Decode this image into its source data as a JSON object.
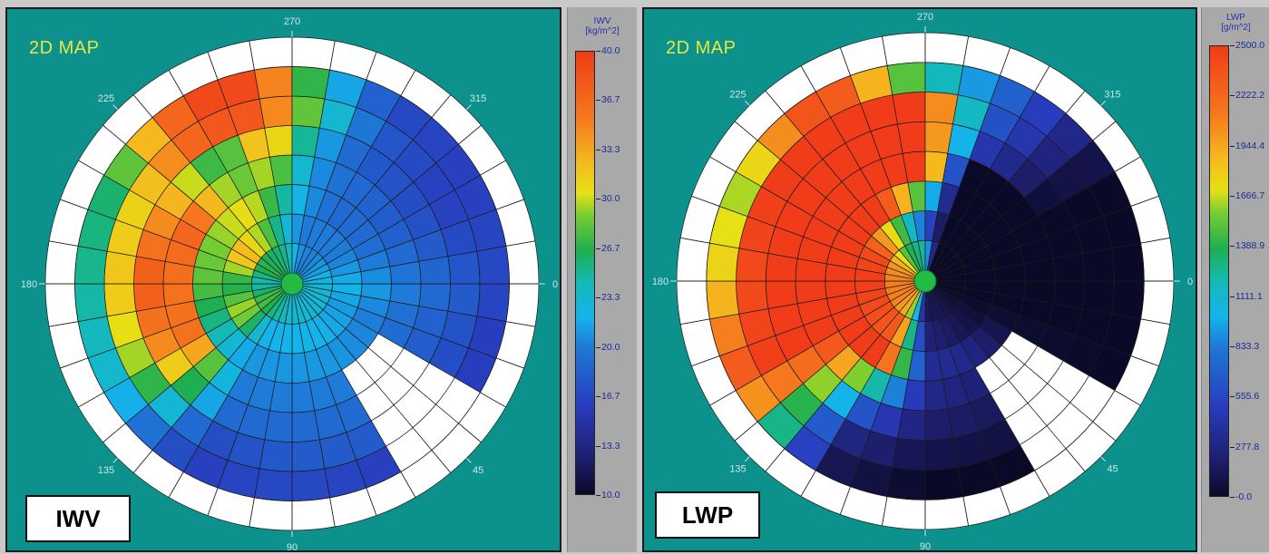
{
  "panels": [
    {
      "id": "iwv",
      "map_title": "2D MAP",
      "name": "IWV",
      "colorbar": {
        "unit_line1": "IWV",
        "unit_line2": "[kg/m^2]",
        "ticks": [
          "40.0",
          "36.7",
          "33.3",
          "30.0",
          "26.7",
          "23.3",
          "20.0",
          "16.7",
          "13.3",
          "10.0"
        ],
        "min": 10.0,
        "max": 40.0
      }
    },
    {
      "id": "lwp",
      "map_title": "2D MAP",
      "name": "LWP",
      "colorbar": {
        "unit_line1": "LWP",
        "unit_line2": "[g/m^2]",
        "ticks": [
          "2500.0",
          "2222.2",
          "1944.4",
          "1666.7",
          "1388.9",
          "1111.1",
          "833.3",
          "555.6",
          "277.8",
          "-0.0"
        ],
        "min": 0.0,
        "max": 2500.0
      }
    }
  ],
  "azimuth_labels": [
    "0",
    "45",
    "90",
    "135",
    "180",
    "225",
    "270",
    "315"
  ],
  "colors": {
    "panel_bg": "#0c918d",
    "title_yellow": "#e8e83a",
    "ring_white": "#ffffff",
    "grid_line": "#1a1a1a",
    "center_dot": "#22bb44"
  },
  "chart_data": [
    {
      "type": "heatmap",
      "projection": "polar",
      "title": "2D MAP",
      "variable": "IWV",
      "unit": "kg/m^2",
      "color_range": [
        10.0,
        40.0
      ],
      "sector_deg": 10,
      "elevation_rings": 7,
      "outer_ring_empty": true,
      "gap_azimuth_range": [
        30,
        60
      ],
      "values_by_azimuth": [
        {
          "az": 0,
          "rings": [
            23,
            22,
            21,
            20,
            19,
            18,
            17
          ]
        },
        {
          "az": 10,
          "rings": [
            23,
            22,
            21,
            20,
            19,
            18,
            16
          ]
        },
        {
          "az": 20,
          "rings": [
            23,
            21,
            20,
            19,
            18,
            17,
            16
          ]
        },
        {
          "az": 60,
          "rings": [
            23,
            22,
            21,
            20,
            19,
            18,
            16
          ]
        },
        {
          "az": 90,
          "rings": [
            23,
            22,
            21,
            20,
            19,
            18,
            17
          ]
        },
        {
          "az": 120,
          "rings": [
            25,
            22,
            21,
            20,
            19,
            17,
            16
          ]
        },
        {
          "az": 150,
          "rings": [
            28,
            30,
            25,
            36,
            34,
            29,
            23
          ]
        },
        {
          "az": 180,
          "rings": [
            24,
            26,
            28,
            36,
            38,
            32,
            25
          ]
        },
        {
          "az": 210,
          "rings": [
            27,
            33,
            29,
            37,
            34,
            31,
            26
          ]
        },
        {
          "az": 240,
          "rings": [
            26,
            29,
            31,
            28,
            26,
            38,
            39
          ]
        },
        {
          "az": 260,
          "rings": [
            25,
            24,
            26,
            30,
            34,
            38,
            39
          ]
        },
        {
          "az": 280,
          "rings": [
            21,
            20,
            21,
            21,
            22,
            25,
            23
          ]
        },
        {
          "az": 300,
          "rings": [
            20,
            20,
            19,
            19,
            18,
            18,
            17
          ]
        },
        {
          "az": 330,
          "rings": [
            21,
            20,
            19,
            18,
            17,
            16,
            16
          ]
        }
      ]
    },
    {
      "type": "heatmap",
      "projection": "polar",
      "title": "2D MAP",
      "variable": "LWP",
      "unit": "g/m^2",
      "color_range": [
        0.0,
        2500.0
      ],
      "sector_deg": 10,
      "elevation_rings": 7,
      "outer_ring_empty": true,
      "gap_azimuth_range": [
        30,
        60
      ],
      "values_by_azimuth": [
        {
          "az": 0,
          "rings": [
            0,
            0,
            0,
            0,
            0,
            0,
            0
          ]
        },
        {
          "az": 20,
          "rings": [
            0,
            0,
            0,
            0,
            0,
            0,
            0
          ]
        },
        {
          "az": 60,
          "rings": [
            120,
            160,
            300,
            220,
            150,
            80,
            0
          ]
        },
        {
          "az": 90,
          "rings": [
            150,
            250,
            350,
            300,
            200,
            100,
            0
          ]
        },
        {
          "az": 120,
          "rings": [
            1900,
            2300,
            2500,
            1400,
            700,
            300,
            150
          ]
        },
        {
          "az": 150,
          "rings": [
            2100,
            2400,
            2500,
            2500,
            2500,
            2500,
            2400
          ]
        },
        {
          "az": 180,
          "rings": [
            2100,
            2500,
            2500,
            2500,
            2500,
            2400,
            1800
          ]
        },
        {
          "az": 210,
          "rings": [
            2000,
            2400,
            2500,
            2500,
            2500,
            2500,
            1600
          ]
        },
        {
          "az": 240,
          "rings": [
            1400,
            1600,
            2500,
            2500,
            2500,
            2500,
            2500
          ]
        },
        {
          "az": 270,
          "rings": [
            1200,
            700,
            1300,
            2500,
            2500,
            2500,
            1300
          ]
        },
        {
          "az": 290,
          "rings": [
            0,
            0,
            0,
            0,
            500,
            700,
            800
          ]
        },
        {
          "az": 330,
          "rings": [
            0,
            0,
            0,
            0,
            0,
            0,
            0
          ]
        }
      ]
    }
  ]
}
